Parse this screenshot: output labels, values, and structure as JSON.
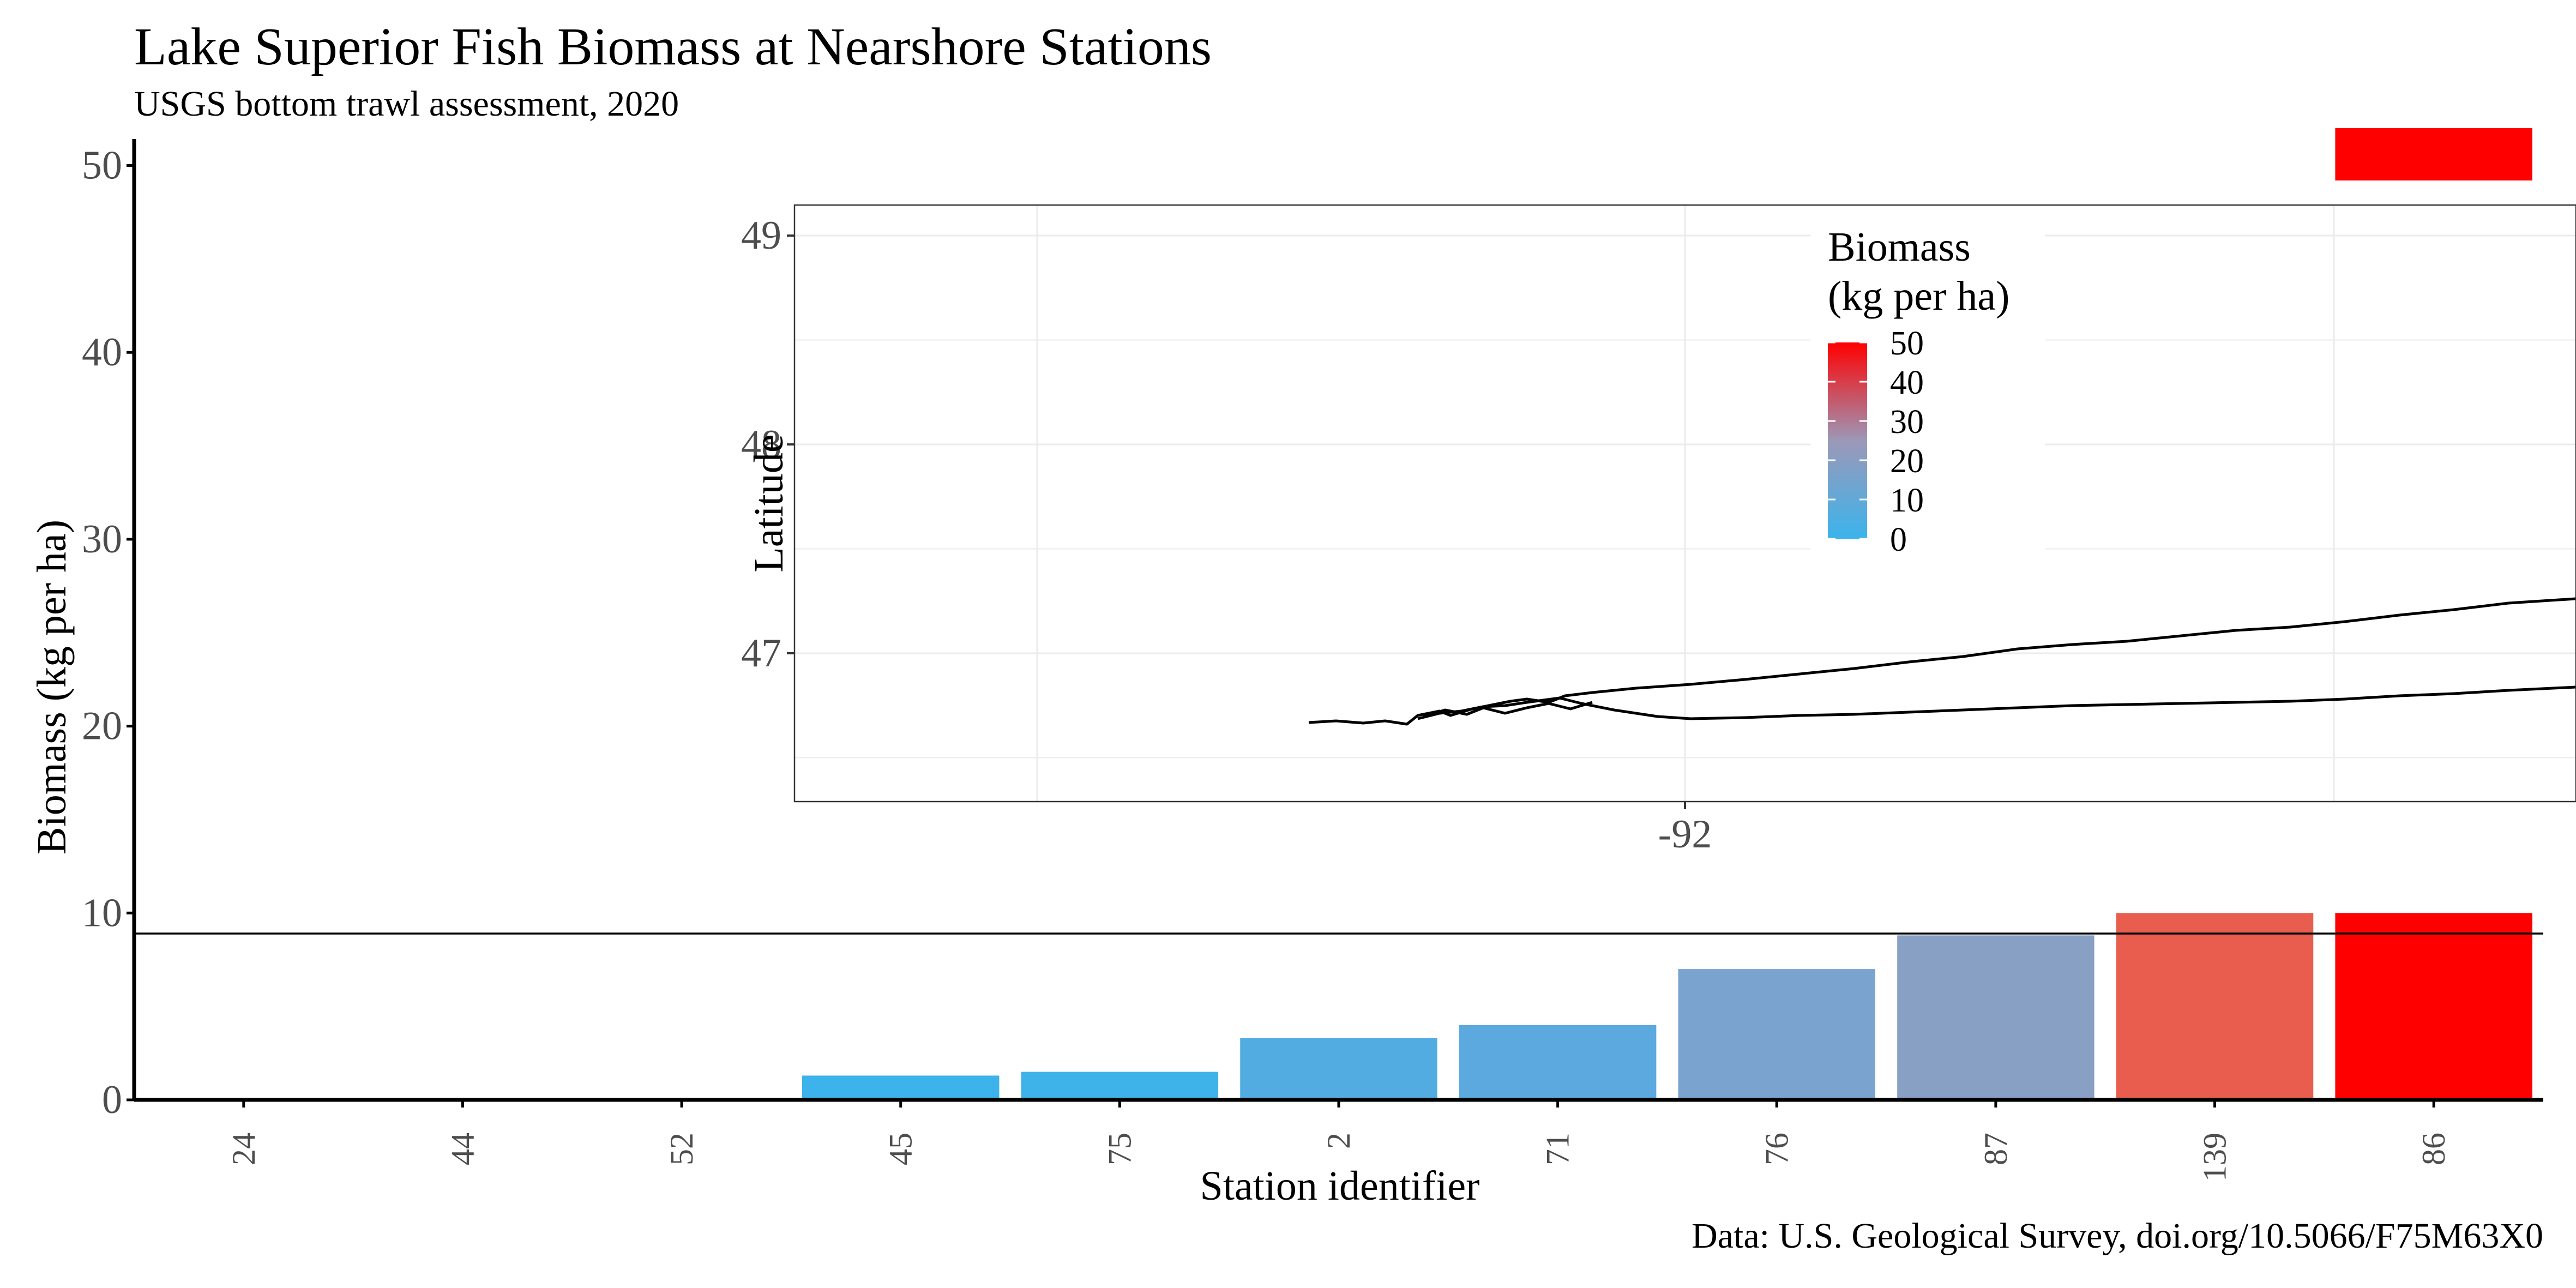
{
  "title": "Lake Superior Fish Biomass at Nearshore Stations",
  "subtitle": "USGS bottom trawl assessment, 2020",
  "caption": "Data: U.S. Geological Survey, doi.org/10.5066/F75M63X0",
  "colors": {
    "low": "#3BB4EC",
    "mid": "#8A9EC2",
    "high": "#FF0000",
    "axis": "#000000",
    "tick_label": "#4D4D4D",
    "grid": "#EBEBEB"
  },
  "chart_data": [
    {
      "type": "bar",
      "title": "Lake Superior Fish Biomass at Nearshore Stations",
      "subtitle": "USGS bottom trawl assessment, 2020",
      "xlabel": "Station identifier",
      "ylabel": "Biomass (kg per ha)",
      "categories": [
        "24",
        "44",
        "52",
        "45",
        "75",
        "2",
        "71",
        "76",
        "87",
        "139",
        "86"
      ],
      "values": [
        0,
        0,
        0,
        1.3,
        1.5,
        3.3,
        4.0,
        7.0,
        8.8,
        10.0,
        10.0
      ],
      "bar_colors": [
        "#3BB4EC",
        "#3BB4EC",
        "#3BB4EC",
        "#3CB3EA",
        "#3DB3E9",
        "#53ACE1",
        "#5BA9DE",
        "#7AA3D0",
        "#88A0C4",
        "#E85D4D",
        "#FF0000"
      ],
      "y_ticks": [
        0,
        10,
        20,
        30,
        40,
        50
      ],
      "ylim": [
        0,
        50
      ],
      "reference_line": 8.9,
      "extra_segment": {
        "category": "86",
        "from": 49.2,
        "to": 52
      },
      "grid": false
    },
    {
      "type": "map",
      "ylabel": "Latitude",
      "y_ticks": [
        47,
        48,
        49
      ],
      "x_tick_labels": [
        "-92"
      ],
      "grid": true,
      "legend": {
        "title_lines": [
          "Biomass",
          "(kg per ha)"
        ],
        "ticks": [
          50,
          40,
          30,
          20,
          10,
          0
        ],
        "placement": "top-center"
      }
    }
  ]
}
